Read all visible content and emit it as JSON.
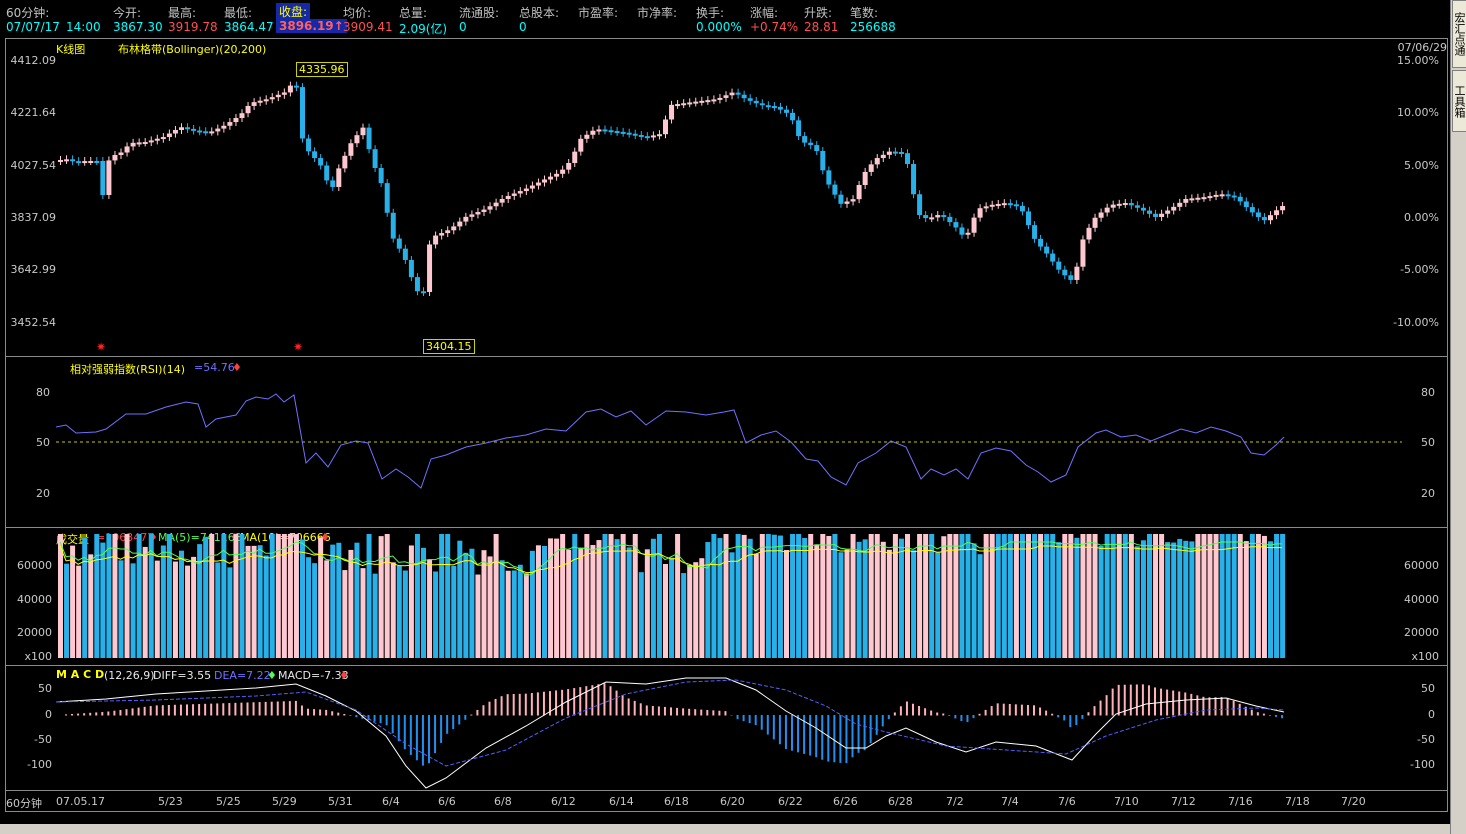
{
  "header": {
    "period": "60分钟:",
    "date": "07/07/17",
    "time": "14:00",
    "fields": [
      {
        "label": "今开:",
        "value": "3867.30"
      },
      {
        "label": "最高:",
        "value": "3919.78"
      },
      {
        "label": "最低:",
        "value": "3864.47"
      },
      {
        "label": "收盘:",
        "value": "3896.19↑"
      },
      {
        "label": "均价:",
        "value": "3909.41"
      },
      {
        "label": "总量:",
        "value": "2.09(亿)"
      },
      {
        "label": "流通股:",
        "value": "0"
      },
      {
        "label": "总股本:",
        "value": "0"
      },
      {
        "label": "市盈率:",
        "value": ""
      },
      {
        "label": "市净率:",
        "value": ""
      },
      {
        "label": "换手:",
        "value": "0.000%"
      },
      {
        "label": "涨幅:",
        "value": "+0.74%"
      },
      {
        "label": "升跌:",
        "value": "28.81"
      },
      {
        "label": "笔数:",
        "value": "256688"
      }
    ]
  },
  "kline": {
    "title": "K线图",
    "indicator": "布林格带(Bollinger)(20,200)",
    "corner_date": "07/06/29",
    "y_ticks": [
      "4412.09",
      "4221.64",
      "4027.54",
      "3837.09",
      "3642.99",
      "3452.54"
    ],
    "pct_ticks": [
      "15.00%",
      "10.00%",
      "5.00%",
      "0.00%",
      "-5.00%",
      "-10.00%"
    ],
    "high_label": "4335.96",
    "low_label": "3404.15",
    "marker": "✷"
  },
  "rsi": {
    "title": "相对强弱指数(RSI)(14)",
    "value": "=54.76",
    "arrow": "♦",
    "ticks": [
      "80",
      "50",
      "20"
    ]
  },
  "volume": {
    "title": "成交量",
    "vol": "=1063477",
    "ma5": "MA(5)=741168",
    "ma10": "MA(10)=706666",
    "arrow": "♦",
    "ticks": [
      "60000",
      "40000",
      "20000",
      "x100"
    ]
  },
  "macd": {
    "title": "M A C D",
    "params": "(12,26,9)",
    "diff": "DIFF=3.55",
    "dea": "DEA=7.22",
    "macd": "MACD=-7.33",
    "arrow": "♦",
    "ticks": [
      "50",
      "0",
      "-50",
      "-100"
    ]
  },
  "datebar": {
    "period": "60分钟",
    "dates": [
      "07.05.17",
      "5/23",
      "5/25",
      "5/29",
      "5/31",
      "6/4",
      "6/6",
      "6/8",
      "6/12",
      "6/14",
      "6/18",
      "6/20",
      "6/22",
      "6/26",
      "6/28",
      "7/2",
      "7/4",
      "7/6",
      "7/10",
      "7/12",
      "7/16",
      "7/18",
      "7/20"
    ]
  },
  "sidebar": {
    "tabs": [
      "宏汇点通",
      "工具箱"
    ]
  },
  "colors": {
    "up": "#ffc8d0",
    "down": "#28b0e8",
    "bg": "#000000",
    "grid": "#8a8a8a"
  }
}
